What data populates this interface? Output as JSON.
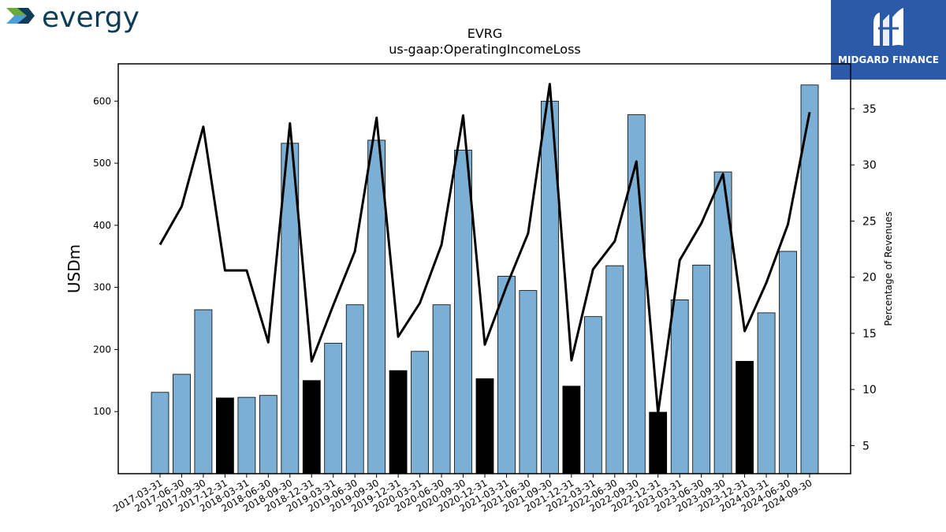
{
  "header": {
    "left_logo_text": "evergy",
    "left_logo_mark_colors": [
      "#6aaa3a",
      "#4a9fd6",
      "#0f3d57"
    ],
    "right_badge_text": "MIDGARD FINANCE",
    "right_badge_color": "#2a5aa8"
  },
  "chart_data": {
    "type": "bar",
    "title": "EVRG",
    "subtitle": "us-gaap:OperatingIncomeLoss",
    "ylabel": "USDm",
    "y2label": "Percentage of Revenues",
    "ylim": [
      0,
      660
    ],
    "y2lim": [
      2.5,
      39
    ],
    "yticks": [
      100,
      200,
      300,
      400,
      500,
      600
    ],
    "y2ticks": [
      5,
      10,
      15,
      20,
      25,
      30,
      35
    ],
    "bar_color": "#7bafd4",
    "highlight_color": "#000000",
    "line_color": "#000000",
    "categories": [
      "2017-03-31",
      "2017-06-30",
      "2017-09-30",
      "2017-12-31",
      "2018-03-31",
      "2018-06-30",
      "2018-09-30",
      "2018-12-31",
      "2019-03-31",
      "2019-06-30",
      "2019-09-30",
      "2019-12-31",
      "2020-03-31",
      "2020-06-30",
      "2020-09-30",
      "2020-12-31",
      "2021-03-31",
      "2021-06-30",
      "2021-09-30",
      "2021-12-31",
      "2022-03-31",
      "2022-06-30",
      "2022-09-30",
      "2022-12-31",
      "2023-03-31",
      "2023-06-30",
      "2023-09-30",
      "2023-12-31",
      "2024-03-31",
      "2024-06-30",
      "2024-09-30"
    ],
    "series": [
      {
        "values": [
          131,
          160,
          264,
          122,
          123,
          126,
          532,
          150,
          210,
          272,
          537,
          166,
          197,
          272,
          521,
          153,
          318,
          295,
          600,
          141,
          253,
          335,
          578,
          99,
          280,
          336,
          486,
          181,
          259,
          358,
          626
        ],
        "highlight": [
          false,
          false,
          false,
          true,
          false,
          false,
          false,
          true,
          false,
          false,
          false,
          true,
          false,
          false,
          false,
          true,
          false,
          false,
          false,
          true,
          false,
          false,
          false,
          true,
          false,
          false,
          false,
          true,
          false,
          false,
          false
        ]
      },
      {
        "axis": "right",
        "values": [
          22.9,
          26.3,
          33.4,
          20.6,
          20.6,
          14.2,
          33.7,
          12.5,
          17.5,
          22.3,
          34.2,
          14.7,
          17.7,
          22.9,
          34.4,
          14.0,
          19.2,
          23.9,
          37.2,
          12.6,
          20.7,
          23.2,
          30.3,
          7.9,
          21.5,
          24.8,
          29.2,
          15.2,
          19.5,
          24.7,
          34.7
        ]
      }
    ]
  }
}
